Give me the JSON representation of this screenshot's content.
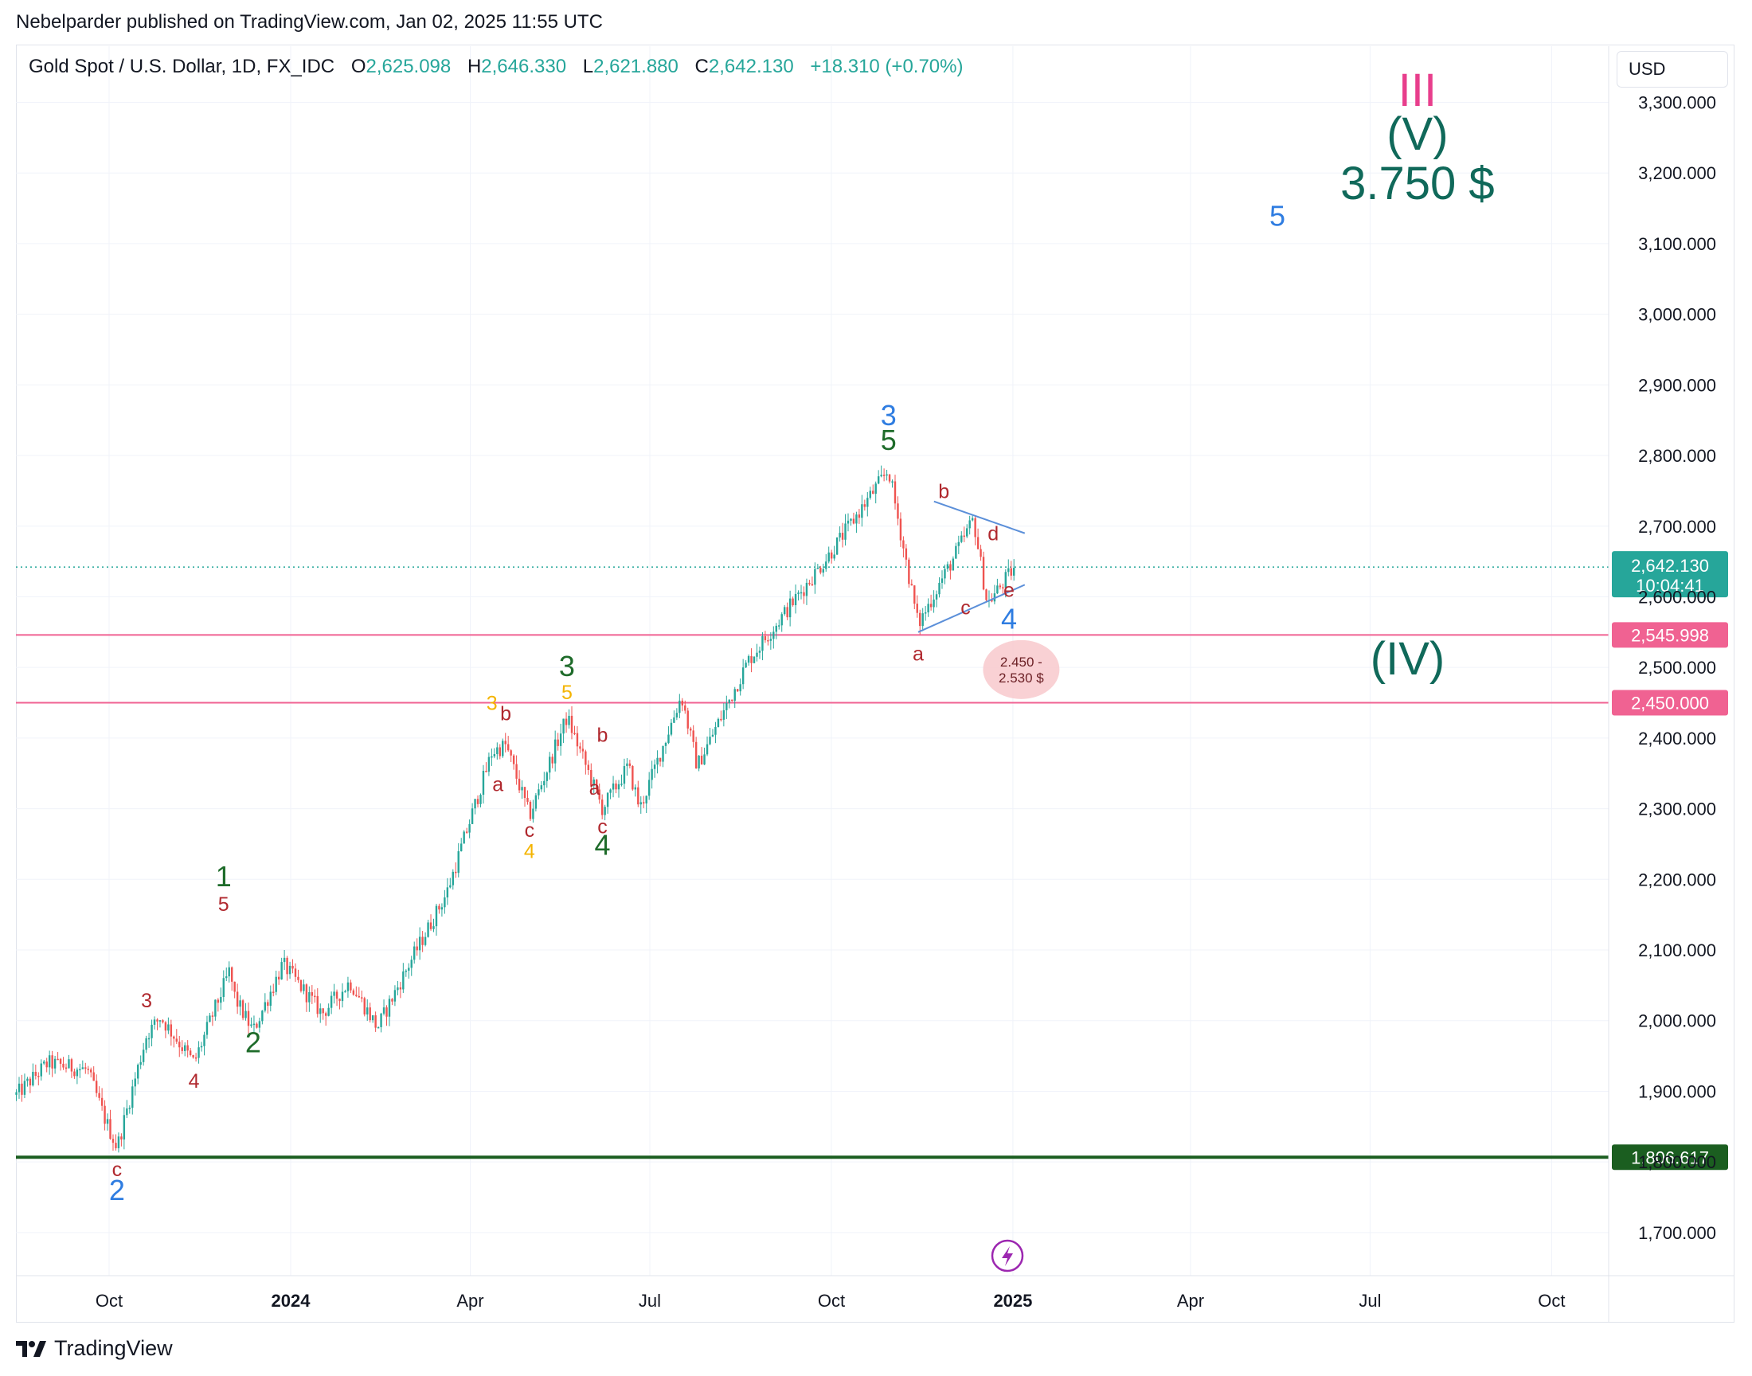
{
  "publisher_line": "Nebelparder published on TradingView.com, Jan 02, 2025 11:55 UTC",
  "brand": "TradingView",
  "legend": {
    "symbol": "Gold Spot / U.S. Dollar, 1D, FX_IDC",
    "o_label": "O",
    "o": "2,625.098",
    "h_label": "H",
    "h": "2,646.330",
    "l_label": "L",
    "l": "2,621.880",
    "c_label": "C",
    "c": "2,642.130",
    "change": "+18.310 (+0.70%)"
  },
  "currency_button": "USD",
  "colors": {
    "up": "#26a69a",
    "down": "#ef5350",
    "pink_line": "#f06292",
    "support_line": "#1b5e20",
    "wave_blue": "#2f7de1",
    "wave_green": "#1e6b2a",
    "wave_red": "#b0282e",
    "wave_orange": "#f4b400",
    "wave_dark_teal": "#10695a",
    "roman_pink": "#e83e8c",
    "triangle_line": "#5b8fd9"
  },
  "chart_data": {
    "type": "candlestick",
    "title": "",
    "xlabel": "",
    "ylabel": "",
    "x_ticks": [
      {
        "label": "Oct",
        "date": "2023-10-01",
        "bold": false
      },
      {
        "label": "2024",
        "date": "2024-01-01",
        "bold": true
      },
      {
        "label": "Apr",
        "date": "2024-04-01",
        "bold": false
      },
      {
        "label": "Jul",
        "date": "2024-07-01",
        "bold": false
      },
      {
        "label": "Oct",
        "date": "2024-10-01",
        "bold": false
      },
      {
        "label": "2025",
        "date": "2025-01-01",
        "bold": true
      },
      {
        "label": "Apr",
        "date": "2025-04-01",
        "bold": false
      },
      {
        "label": "Jul",
        "date": "2025-07-01",
        "bold": false
      },
      {
        "label": "Oct",
        "date": "2025-10-01",
        "bold": false
      }
    ],
    "y_ticks": [
      "3,300.000",
      "3,200.000",
      "3,100.000",
      "3,000.000",
      "2,900.000",
      "2,800.000",
      "2,700.000",
      "2,600.000",
      "2,500.000",
      "2,400.000",
      "2,300.000",
      "2,200.000",
      "2,100.000",
      "2,000.000",
      "1,900.000",
      "1,800.000",
      "1,700.000"
    ],
    "y_tick_values": [
      3300,
      3200,
      3100,
      3000,
      2900,
      2800,
      2700,
      2600,
      2500,
      2400,
      2300,
      2200,
      2100,
      2000,
      1900,
      1800,
      1700
    ],
    "price_path": [
      [
        "2023-08-15",
        1895
      ],
      [
        "2023-08-31",
        1940
      ],
      [
        "2023-09-20",
        1930
      ],
      [
        "2023-09-29",
        1860
      ],
      [
        "2023-10-05",
        1820
      ],
      [
        "2023-10-20",
        1980
      ],
      [
        "2023-10-27",
        2005
      ],
      [
        "2023-11-13",
        1940
      ],
      [
        "2023-12-01",
        2070
      ],
      [
        "2023-12-04",
        2030
      ],
      [
        "2023-12-13",
        1985
      ],
      [
        "2023-12-28",
        2080
      ],
      [
        "2024-01-17",
        2010
      ],
      [
        "2024-01-31",
        2055
      ],
      [
        "2024-02-14",
        1990
      ],
      [
        "2024-03-01",
        2080
      ],
      [
        "2024-03-20",
        2180
      ],
      [
        "2024-04-12",
        2380
      ],
      [
        "2024-04-19",
        2390
      ],
      [
        "2024-05-01",
        2290
      ],
      [
        "2024-05-20",
        2430
      ],
      [
        "2024-06-07",
        2300
      ],
      [
        "2024-06-20",
        2360
      ],
      [
        "2024-06-26",
        2300
      ],
      [
        "2024-07-17",
        2460
      ],
      [
        "2024-07-25",
        2360
      ],
      [
        "2024-08-20",
        2510
      ],
      [
        "2024-09-30",
        2660
      ],
      [
        "2024-10-30",
        2780
      ],
      [
        "2024-11-14",
        2560
      ],
      [
        "2024-11-25",
        2620
      ],
      [
        "2024-12-01",
        2650
      ],
      [
        "2024-12-12",
        2710
      ],
      [
        "2024-12-19",
        2590
      ],
      [
        "2025-01-02",
        2642
      ]
    ],
    "horizontal_levels": [
      {
        "value": 2545.998,
        "label": "2,545.998",
        "color": "#f06292"
      },
      {
        "value": 2450.0,
        "label": "2,450.000",
        "color": "#f06292"
      },
      {
        "value": 1806.617,
        "label": "1,806.617",
        "color": "#1b5e20"
      }
    ],
    "last_price": {
      "value": 2642.13,
      "label": "2,642.130",
      "countdown": "10:04:41"
    },
    "target_zone": {
      "low": 2450,
      "high": 2530,
      "text_line1": "2.450 -",
      "text_line2": "2.530 $",
      "date": "2025-01-02"
    },
    "triangle_lines": [
      {
        "from": [
          "2024-11-14",
          2550
        ],
        "to": [
          "2025-01-07",
          2617
        ]
      },
      {
        "from": [
          "2024-11-22",
          2735
        ],
        "to": [
          "2025-01-07",
          2690
        ]
      }
    ],
    "wave_labels": [
      {
        "text": "c",
        "date": "2023-10-05",
        "price": 1780,
        "color": "wave_red",
        "size": "small"
      },
      {
        "text": "2",
        "date": "2023-10-05",
        "price": 1746,
        "color": "wave_blue",
        "size": "large"
      },
      {
        "text": "3",
        "date": "2023-10-20",
        "price": 2019,
        "color": "wave_red",
        "size": "small"
      },
      {
        "text": "4",
        "date": "2023-11-13",
        "price": 1905,
        "color": "wave_red",
        "size": "small"
      },
      {
        "text": "1",
        "date": "2023-11-28",
        "price": 2190,
        "color": "wave_green",
        "size": "large"
      },
      {
        "text": "5",
        "date": "2023-11-28",
        "price": 2155,
        "color": "wave_red",
        "size": "small"
      },
      {
        "text": "2",
        "date": "2023-12-13",
        "price": 1955,
        "color": "wave_green",
        "size": "large"
      },
      {
        "text": "3",
        "date": "2024-04-12",
        "price": 2440,
        "color": "wave_orange",
        "size": "small"
      },
      {
        "text": "b",
        "date": "2024-04-19",
        "price": 2425,
        "color": "wave_red",
        "size": "small"
      },
      {
        "text": "a",
        "date": "2024-04-15",
        "price": 2325,
        "color": "wave_red",
        "size": "small"
      },
      {
        "text": "c",
        "date": "2024-05-01",
        "price": 2260,
        "color": "wave_red",
        "size": "small"
      },
      {
        "text": "4",
        "date": "2024-05-01",
        "price": 2230,
        "color": "wave_orange",
        "size": "small"
      },
      {
        "text": "3",
        "date": "2024-05-20",
        "price": 2488,
        "color": "wave_green",
        "size": "large"
      },
      {
        "text": "5",
        "date": "2024-05-20",
        "price": 2455,
        "color": "wave_orange",
        "size": "small"
      },
      {
        "text": "b",
        "date": "2024-06-07",
        "price": 2395,
        "color": "wave_red",
        "size": "small"
      },
      {
        "text": "a",
        "date": "2024-06-03",
        "price": 2320,
        "color": "wave_red",
        "size": "small"
      },
      {
        "text": "c",
        "date": "2024-06-07",
        "price": 2265,
        "color": "wave_red",
        "size": "small"
      },
      {
        "text": "4",
        "date": "2024-06-07",
        "price": 2235,
        "color": "wave_green",
        "size": "large"
      },
      {
        "text": "3",
        "date": "2024-10-30",
        "price": 2843,
        "color": "wave_blue",
        "size": "large"
      },
      {
        "text": "5",
        "date": "2024-10-30",
        "price": 2808,
        "color": "wave_green",
        "size": "large"
      },
      {
        "text": "b",
        "date": "2024-11-27",
        "price": 2740,
        "color": "wave_red",
        "size": "small"
      },
      {
        "text": "d",
        "date": "2024-12-22",
        "price": 2680,
        "color": "wave_red",
        "size": "small"
      },
      {
        "text": "c",
        "date": "2024-12-08",
        "price": 2575,
        "color": "wave_red",
        "size": "small"
      },
      {
        "text": "e",
        "date": "2024-12-30",
        "price": 2600,
        "color": "wave_red",
        "size": "small"
      },
      {
        "text": "4",
        "date": "2024-12-30",
        "price": 2555,
        "color": "wave_blue",
        "size": "large"
      },
      {
        "text": "a",
        "date": "2024-11-14",
        "price": 2510,
        "color": "wave_red",
        "size": "small"
      },
      {
        "text": "5",
        "date": "2025-05-15",
        "price": 3125,
        "color": "wave_blue",
        "size": "large"
      },
      {
        "text": "(IV)",
        "date": "2025-07-20",
        "price": 2490,
        "color": "wave_dark_teal",
        "size": "xlarge"
      },
      {
        "text": "III",
        "date": "2025-07-25",
        "price": 3295,
        "color": "roman_pink",
        "size": "xlarge"
      },
      {
        "text": "(V)",
        "date": "2025-07-25",
        "price": 3233,
        "color": "wave_dark_teal",
        "size": "xlarge"
      },
      {
        "text": "3.750 $",
        "date": "2025-07-25",
        "price": 3163,
        "color": "wave_dark_teal",
        "size": "xlarge"
      }
    ]
  }
}
